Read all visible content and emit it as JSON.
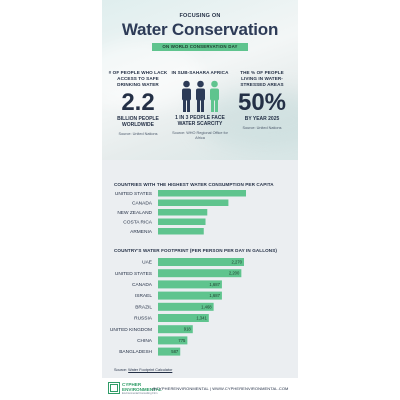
{
  "header": {
    "kicker": "FOCUSING ON",
    "title": "Water Conservation",
    "subtitle": "ON WORLD CONSERVATION DAY"
  },
  "stats": [
    {
      "label": "# OF PEOPLE WHO LACK ACCESS TO SAFE DRINKING WATER",
      "value": "2.2",
      "unit": "BILLION PEOPLE WORLDWIDE",
      "source": "Source: United Nations"
    },
    {
      "label": "IN SUB-SAHARA AFRICA",
      "value": "1 IN 3 PEOPLE FACE WATER SCARCITY",
      "unit": "",
      "source": "Source: WHO Regional Office for Africa"
    },
    {
      "label": "THE % OF PEOPLE LIVING IN WATER-STRESSED AREAS",
      "value": "50%",
      "unit": "BY YEAR 2025",
      "source": "Source: United Nations"
    }
  ],
  "colors": {
    "accent": "#5fc48e",
    "navy": "#2d3b57",
    "band": "#ebeef1"
  },
  "chart_data": [
    {
      "type": "bar",
      "orientation": "horizontal",
      "title": "COUNTRIES WITH THE HIGHEST WATER CONSUMPTION PER CAPITA",
      "categories": [
        "UNITED STATES",
        "CANADA",
        "NEW ZEALAND",
        "COSTA RICA",
        "ARMENIA"
      ],
      "values": [
        100,
        80,
        56,
        54,
        52
      ],
      "value_labels_shown": false
    },
    {
      "type": "bar",
      "orientation": "horizontal",
      "title": "COUNTRY'S WATER FOOTPRINT (PER PERSON PER DAY IN GALLONS)",
      "categories": [
        "UAE",
        "UNITED STATES",
        "CANADA",
        "ISRAEL",
        "BRAZIL",
        "RUSSIA",
        "UNITED KINGDOM",
        "CHINA",
        "BANGLADESH"
      ],
      "values": [
        2270,
        2200,
        1687,
        1687,
        1468,
        1341,
        918,
        775,
        587
      ],
      "labels": [
        "2,270",
        "2,200",
        "1,687",
        "1,687",
        "1,468",
        "1,341",
        "918",
        "775",
        "587"
      ],
      "value_labels_shown": true
    }
  ],
  "source": {
    "prefix": "Source:",
    "link": "Water Footprint Calculator"
  },
  "footer": {
    "brand_line1": "CYPHER",
    "brand_line2": "ENVIRONMENTAL",
    "tagline": "Environmental Consulting Firm",
    "contact": "@CYPHERENVIRONMENTAL | WWW.CYPHERENVIRONMENTAL.COM"
  }
}
